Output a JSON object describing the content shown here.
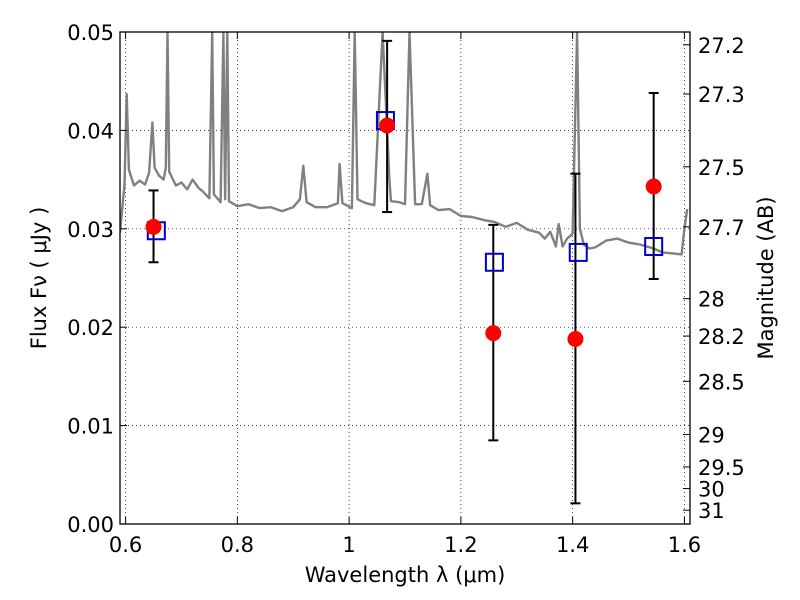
{
  "chart_data": {
    "type": "scatter",
    "xlabel": "Wavelength  λ (μm)",
    "ylabel": "Flux  Fν  ( μJy )",
    "ylabel_right": "Magnitude (AB)",
    "xlim": [
      0.59,
      1.61
    ],
    "ylim": [
      0.0,
      0.05
    ],
    "grid": true,
    "x_ticks": [
      {
        "value": 0.6,
        "label": "0.6"
      },
      {
        "value": 0.8,
        "label": "0.8"
      },
      {
        "value": 1.0,
        "label": "1"
      },
      {
        "value": 1.2,
        "label": "1.2"
      },
      {
        "value": 1.4,
        "label": "1.4"
      },
      {
        "value": 1.6,
        "label": "1.6"
      }
    ],
    "y_ticks": [
      {
        "value": 0.0,
        "label": "0.00"
      },
      {
        "value": 0.01,
        "label": "0.01"
      },
      {
        "value": 0.02,
        "label": "0.02"
      },
      {
        "value": 0.03,
        "label": "0.03"
      },
      {
        "value": 0.04,
        "label": "0.04"
      },
      {
        "value": 0.05,
        "label": "0.05"
      }
    ],
    "right_ticks": [
      {
        "flux": 0.0487,
        "label": "27.2"
      },
      {
        "flux": 0.0437,
        "label": "27.3"
      },
      {
        "flux": 0.0363,
        "label": "27.5"
      },
      {
        "flux": 0.0302,
        "label": "27.7"
      },
      {
        "flux": 0.0229,
        "label": "28"
      },
      {
        "flux": 0.0191,
        "label": "28.2"
      },
      {
        "flux": 0.0145,
        "label": "28.5"
      },
      {
        "flux": 0.0091,
        "label": "29"
      },
      {
        "flux": 0.0058,
        "label": "29.5"
      },
      {
        "flux": 0.0036,
        "label": "30"
      },
      {
        "flux": 0.0014,
        "label": "31"
      }
    ],
    "series": [
      {
        "kind": "observed",
        "color": "#ff0000",
        "points": [
          {
            "x": 0.65,
            "y": 0.0302,
            "ylo": 0.0266,
            "yhi": 0.0339
          },
          {
            "x": 1.068,
            "y": 0.0405,
            "ylo": 0.0317,
            "yhi": 0.0491
          },
          {
            "x": 1.258,
            "y": 0.0194,
            "ylo": 0.0085,
            "yhi": 0.0304
          },
          {
            "x": 1.405,
            "y": 0.0188,
            "ylo": 0.0021,
            "yhi": 0.0356
          },
          {
            "x": 1.545,
            "y": 0.0343,
            "ylo": 0.0249,
            "yhi": 0.0438
          }
        ]
      },
      {
        "kind": "model-photometry",
        "color": "#0000cc",
        "points": [
          {
            "x": 0.655,
            "y": 0.0298
          },
          {
            "x": 1.065,
            "y": 0.041
          },
          {
            "x": 1.26,
            "y": 0.0266
          },
          {
            "x": 1.41,
            "y": 0.0276
          },
          {
            "x": 1.545,
            "y": 0.0282
          }
        ]
      },
      {
        "kind": "template-spectrum",
        "color": "#808080",
        "points": [
          [
            0.59,
            0.0296
          ],
          [
            0.595,
            0.0327
          ],
          [
            0.598,
            0.0345
          ],
          [
            0.602,
            0.0437
          ],
          [
            0.606,
            0.036
          ],
          [
            0.615,
            0.0344
          ],
          [
            0.625,
            0.0349
          ],
          [
            0.635,
            0.0345
          ],
          [
            0.642,
            0.0357
          ],
          [
            0.648,
            0.0408
          ],
          [
            0.652,
            0.0362
          ],
          [
            0.66,
            0.0354
          ],
          [
            0.668,
            0.035
          ],
          [
            0.672,
            0.0362
          ],
          [
            0.675,
            0.05
          ],
          [
            0.678,
            0.0358
          ],
          [
            0.69,
            0.0344
          ],
          [
            0.7,
            0.0347
          ],
          [
            0.71,
            0.034
          ],
          [
            0.72,
            0.035
          ],
          [
            0.73,
            0.0342
          ],
          [
            0.74,
            0.0337
          ],
          [
            0.75,
            0.0331
          ],
          [
            0.755,
            0.05
          ],
          [
            0.758,
            0.0335
          ],
          [
            0.77,
            0.0327
          ],
          [
            0.775,
            0.05
          ],
          [
            0.778,
            0.033
          ],
          [
            0.782,
            0.05
          ],
          [
            0.785,
            0.0328
          ],
          [
            0.8,
            0.0323
          ],
          [
            0.82,
            0.0325
          ],
          [
            0.84,
            0.0321
          ],
          [
            0.86,
            0.0322
          ],
          [
            0.88,
            0.0318
          ],
          [
            0.9,
            0.0322
          ],
          [
            0.912,
            0.033
          ],
          [
            0.918,
            0.0364
          ],
          [
            0.924,
            0.0327
          ],
          [
            0.94,
            0.0322
          ],
          [
            0.96,
            0.0322
          ],
          [
            0.98,
            0.0326
          ],
          [
            0.983,
            0.0366
          ],
          [
            0.988,
            0.0326
          ],
          [
            1.005,
            0.0321
          ],
          [
            1.01,
            0.05
          ],
          [
            1.015,
            0.033
          ],
          [
            1.03,
            0.0326
          ],
          [
            1.045,
            0.0324
          ],
          [
            1.06,
            0.05
          ],
          [
            1.072,
            0.035
          ],
          [
            1.075,
            0.0328
          ],
          [
            1.09,
            0.0327
          ],
          [
            1.1,
            0.0325
          ],
          [
            1.108,
            0.05
          ],
          [
            1.118,
            0.0325
          ],
          [
            1.13,
            0.0325
          ],
          [
            1.14,
            0.0356
          ],
          [
            1.145,
            0.0324
          ],
          [
            1.16,
            0.0319
          ],
          [
            1.18,
            0.032
          ],
          [
            1.2,
            0.0313
          ],
          [
            1.22,
            0.0312
          ],
          [
            1.24,
            0.0309
          ],
          [
            1.26,
            0.0307
          ],
          [
            1.28,
            0.0302
          ],
          [
            1.3,
            0.0306
          ],
          [
            1.32,
            0.0299
          ],
          [
            1.34,
            0.0296
          ],
          [
            1.35,
            0.029
          ],
          [
            1.36,
            0.0297
          ],
          [
            1.37,
            0.0282
          ],
          [
            1.375,
            0.0305
          ],
          [
            1.382,
            0.0282
          ],
          [
            1.39,
            0.029
          ],
          [
            1.4,
            0.0295
          ],
          [
            1.408,
            0.05
          ],
          [
            1.413,
            0.03
          ],
          [
            1.42,
            0.0284
          ],
          [
            1.43,
            0.028
          ],
          [
            1.44,
            0.0281
          ],
          [
            1.46,
            0.0288
          ],
          [
            1.48,
            0.029
          ],
          [
            1.5,
            0.0286
          ],
          [
            1.52,
            0.0284
          ],
          [
            1.545,
            0.028
          ],
          [
            1.56,
            0.0276
          ],
          [
            1.58,
            0.0275
          ],
          [
            1.595,
            0.0274
          ],
          [
            1.6,
            0.03
          ],
          [
            1.605,
            0.032
          ]
        ]
      }
    ]
  }
}
